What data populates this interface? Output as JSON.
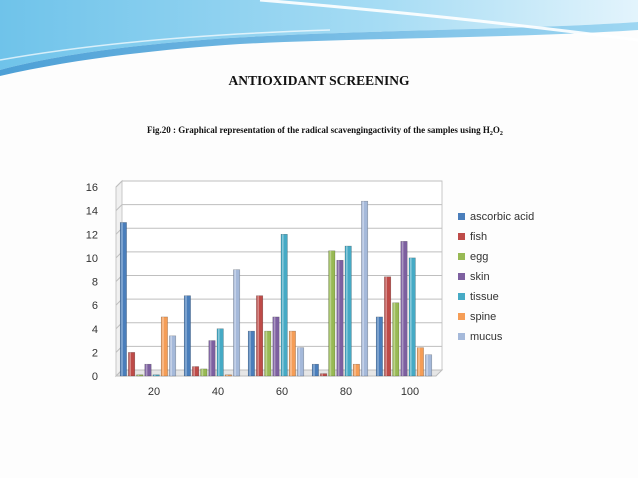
{
  "slide": {
    "title": "ANTIOXIDANT SCREENING",
    "caption_main": "Fig.20 : Graphical representation of the radical scavengingactivity of the samples using H",
    "caption_sub1": "2",
    "caption_mid": "O",
    "caption_sub2": "2"
  },
  "chart_data": {
    "type": "bar",
    "title": "",
    "xlabel": "",
    "ylabel": "",
    "categories": [
      "20",
      "40",
      "60",
      "80",
      "100"
    ],
    "ylim": [
      0,
      16
    ],
    "yticks": [
      0,
      2,
      4,
      6,
      8,
      10,
      12,
      14,
      16
    ],
    "grid": true,
    "legend_position": "right",
    "series": [
      {
        "name": "ascorbic acid",
        "color": "#4a7ebb",
        "values": [
          13.0,
          6.8,
          3.8,
          1.0,
          5.0
        ]
      },
      {
        "name": "fish",
        "color": "#be4b48",
        "values": [
          2.0,
          0.8,
          6.8,
          0.2,
          8.4
        ]
      },
      {
        "name": "egg",
        "color": "#98b954",
        "values": [
          0.1,
          0.6,
          3.8,
          10.6,
          6.2
        ]
      },
      {
        "name": "skin",
        "color": "#7d60a0",
        "values": [
          1.0,
          3.0,
          5.0,
          9.8,
          11.4
        ]
      },
      {
        "name": "tissue",
        "color": "#46aac5",
        "values": [
          0.1,
          4.0,
          12.0,
          11.0,
          10.0
        ]
      },
      {
        "name": "spine",
        "color": "#f59d56",
        "values": [
          5.0,
          0.1,
          3.8,
          1.0,
          2.4
        ]
      },
      {
        "name": "mucus",
        "color": "#a5b9da",
        "values": [
          3.4,
          9.0,
          2.4,
          14.8,
          1.8
        ]
      }
    ]
  }
}
